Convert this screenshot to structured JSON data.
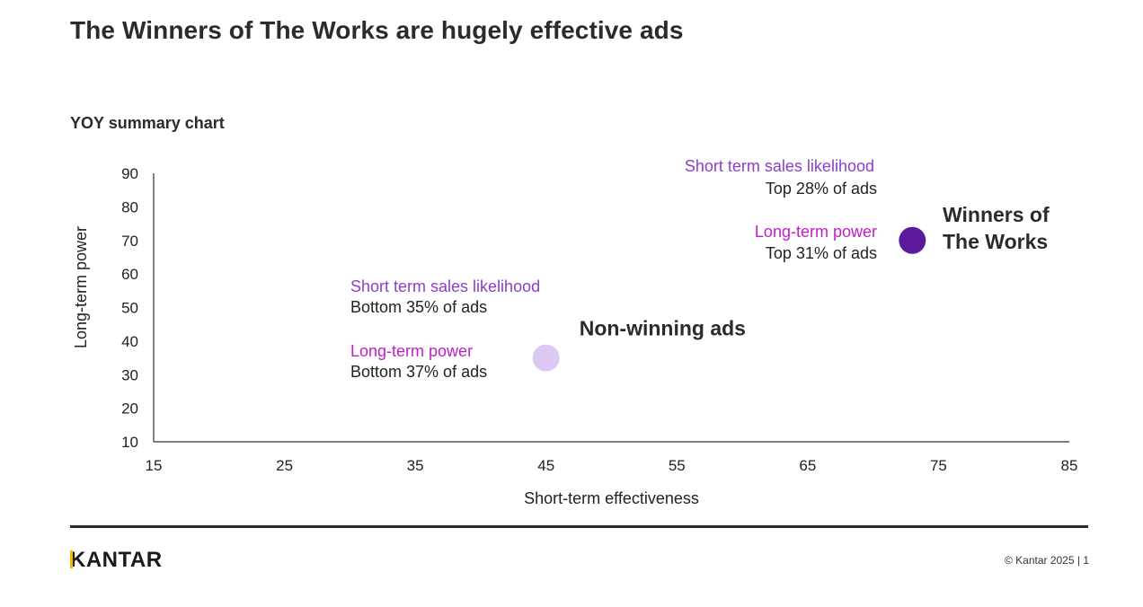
{
  "page": {
    "title": "The Winners of The Works are hugely effective ads",
    "subtitle": "YOY summary chart",
    "brand": "KANTAR",
    "copyright": "© Kantar 2025 | 1"
  },
  "colors": {
    "label_purple": "#8a3fc9",
    "label_magenta": "#c21fc8",
    "winners_dot": "#5b1a9c",
    "nonwinning_dot": "#dcc9f3",
    "axis": "#333333",
    "text_dark": "#222222"
  },
  "chart_data": {
    "type": "scatter",
    "xlabel": "Short-term effectiveness",
    "ylabel": "Long-term power",
    "xlim": [
      15,
      85
    ],
    "ylim": [
      10,
      90
    ],
    "xticks": [
      15,
      25,
      35,
      45,
      55,
      65,
      75,
      85
    ],
    "yticks": [
      10,
      20,
      30,
      40,
      50,
      60,
      70,
      80,
      90
    ],
    "grid": false,
    "points": [
      {
        "id": "non-winning",
        "name": "Non-winning ads",
        "x": 45,
        "y": 35,
        "short_term_label": "Short term sales likelihood",
        "short_term_value": "Bottom 35% of ads",
        "long_term_label": "Long-term power",
        "long_term_value": "Bottom 37% of ads"
      },
      {
        "id": "winners",
        "name_lines": [
          "Winners of",
          "The Works"
        ],
        "x": 73,
        "y": 70,
        "short_term_label": "Short term sales likelihood",
        "short_term_value": "Top 28% of ads",
        "long_term_label": "Long-term power",
        "long_term_value": "Top 31% of ads"
      }
    ]
  }
}
